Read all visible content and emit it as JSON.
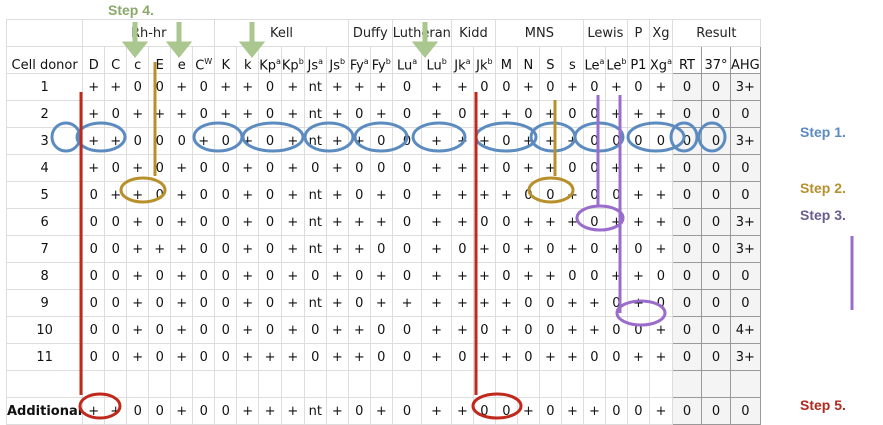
{
  "steps": {
    "step1": {
      "label": "Step 1.",
      "color": "#5b8bbf"
    },
    "step2": {
      "label": "Step 2.",
      "color": "#b8902b"
    },
    "step3": {
      "label": "Step 3.",
      "color": "#6b5c8f"
    },
    "step4": {
      "label": "Step 4.",
      "color": "#8aa86a"
    },
    "step5": {
      "label": "Step 5.",
      "color": "#b02a1e"
    }
  },
  "systems": [
    {
      "name": "",
      "span": 1
    },
    {
      "name": "Rh-hr",
      "span": 6
    },
    {
      "name": "Kell",
      "span": 6
    },
    {
      "name": "Duffy",
      "span": 2
    },
    {
      "name": "Lutheran",
      "span": 2
    },
    {
      "name": "Kidd",
      "span": 2
    },
    {
      "name": "MNS",
      "span": 4
    },
    {
      "name": "Lewis",
      "span": 2
    },
    {
      "name": "P",
      "span": 1
    },
    {
      "name": "Xg",
      "span": 1
    },
    {
      "name": "Result",
      "span": 3
    }
  ],
  "header": {
    "cell_donor": "Cell donor",
    "antigens": [
      "D",
      "C",
      "c",
      "E",
      "e",
      "Cw",
      "K",
      "k",
      "Kpa",
      "Kpb",
      "Jsa",
      "Jsb",
      "Fya",
      "Fyb",
      "Lua",
      "Lub",
      "Jka",
      "Jkb",
      "M",
      "N",
      "S",
      "s",
      "Lea",
      "Leb",
      "P1",
      "Xga"
    ],
    "results": [
      "RT",
      "37°",
      "AHG"
    ]
  },
  "rows": [
    {
      "donor": "1",
      "cells": [
        "+",
        "+",
        "0",
        "0",
        "+",
        "0",
        "+",
        "+",
        "0",
        "+",
        "nt",
        "+",
        "+",
        "+",
        "0",
        "+",
        "+",
        "0",
        "0",
        "+",
        "0",
        "+",
        "0",
        "+",
        "0",
        "+"
      ],
      "results": [
        "0",
        "0",
        "3+"
      ]
    },
    {
      "donor": "2",
      "cells": [
        "+",
        "0",
        "+",
        "+",
        "+",
        "0",
        "+",
        "+",
        "0",
        "+",
        "nt",
        "+",
        "0",
        "+",
        "0",
        "+",
        "0",
        "+",
        "+",
        "0",
        "+",
        "0",
        "0",
        "+",
        "+",
        "+"
      ],
      "results": [
        "0",
        "0",
        "0"
      ]
    },
    {
      "donor": "3",
      "cells": [
        "+",
        "+",
        "0",
        "0",
        "0",
        "+",
        "0",
        "+",
        "0",
        "+",
        "nt",
        "+",
        "+",
        "0",
        "0",
        "+",
        "+",
        "+",
        "0",
        "+",
        "+",
        "+",
        "0",
        "0",
        "0",
        "0"
      ],
      "results": [
        "0",
        "0",
        "3+"
      ]
    },
    {
      "donor": "4",
      "cells": [
        "+",
        "0",
        "+",
        "0",
        "+",
        "0",
        "0",
        "+",
        "0",
        "+",
        "0",
        "+",
        "0",
        "0",
        "0",
        "+",
        "+",
        "+",
        "0",
        "+",
        "+",
        "0",
        "0",
        "+",
        "+",
        "+"
      ],
      "results": [
        "0",
        "0",
        "0"
      ]
    },
    {
      "donor": "5",
      "cells": [
        "0",
        "+",
        "+",
        "0",
        "+",
        "0",
        "0",
        "+",
        "0",
        "+",
        "nt",
        "+",
        "0",
        "+",
        "0",
        "+",
        "+",
        "+",
        "+",
        "0",
        "0",
        "+",
        "0",
        "0",
        "+",
        "+"
      ],
      "results": [
        "0",
        "0",
        "0"
      ]
    },
    {
      "donor": "6",
      "cells": [
        "0",
        "0",
        "+",
        "0",
        "+",
        "0",
        "0",
        "+",
        "0",
        "+",
        "nt",
        "+",
        "+",
        "+",
        "0",
        "+",
        "+",
        "0",
        "0",
        "+",
        "+",
        "+",
        "0",
        "+",
        "+",
        "+"
      ],
      "results": [
        "0",
        "0",
        "3+"
      ]
    },
    {
      "donor": "7",
      "cells": [
        "0",
        "0",
        "+",
        "+",
        "+",
        "0",
        "0",
        "+",
        "0",
        "+",
        "nt",
        "+",
        "+",
        "0",
        "0",
        "+",
        "0",
        "+",
        "0",
        "+",
        "0",
        "+",
        "0",
        "+",
        "0",
        "+"
      ],
      "results": [
        "0",
        "0",
        "3+"
      ]
    },
    {
      "donor": "8",
      "cells": [
        "0",
        "0",
        "+",
        "0",
        "+",
        "0",
        "0",
        "+",
        "0",
        "+",
        "0",
        "+",
        "0",
        "+",
        "0",
        "+",
        "+",
        "+",
        "0",
        "+",
        "+",
        "0",
        "0",
        "+",
        "+",
        "0"
      ],
      "results": [
        "0",
        "0",
        "0"
      ]
    },
    {
      "donor": "9",
      "cells": [
        "0",
        "0",
        "+",
        "0",
        "+",
        "0",
        "0",
        "+",
        "0",
        "+",
        "nt",
        "+",
        "0",
        "+",
        "+",
        "+",
        "+",
        "+",
        "+",
        "0",
        "0",
        "+",
        "+",
        "0",
        "+",
        "0"
      ],
      "results": [
        "0",
        "0",
        "0"
      ]
    },
    {
      "donor": "10",
      "cells": [
        "0",
        "0",
        "+",
        "0",
        "+",
        "0",
        "0",
        "+",
        "0",
        "+",
        "0",
        "+",
        "+",
        "0",
        "0",
        "+",
        "+",
        "0",
        "+",
        "0",
        "0",
        "+",
        "+",
        "0",
        "0",
        "+"
      ],
      "results": [
        "0",
        "0",
        "4+"
      ]
    },
    {
      "donor": "11",
      "cells": [
        "0",
        "0",
        "+",
        "0",
        "+",
        "0",
        "0",
        "+",
        "+",
        "+",
        "0",
        "+",
        "+",
        "0",
        "0",
        "+",
        "0",
        "+",
        "+",
        "0",
        "+",
        "+",
        "0",
        "0",
        "+",
        "+"
      ],
      "results": [
        "0",
        "0",
        "3+"
      ]
    }
  ],
  "additional": {
    "donor": "Additional",
    "cells": [
      "+",
      "+",
      "0",
      "0",
      "+",
      "0",
      "0",
      "+",
      "+",
      "+",
      "nt",
      "+",
      "0",
      "+",
      "0",
      "+",
      "+",
      "0",
      "0",
      "+",
      "0",
      "+",
      "+",
      "0",
      "0",
      "+"
    ],
    "results": [
      "0",
      "0",
      "0"
    ]
  }
}
